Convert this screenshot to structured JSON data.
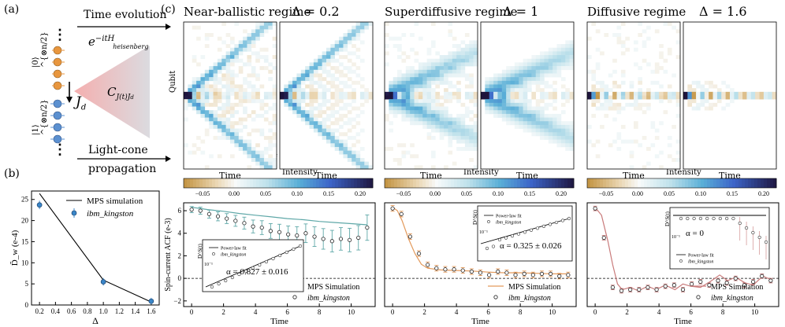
{
  "panel_labels": {
    "a": "(a)",
    "b": "(b)",
    "c": "(c)"
  },
  "schematic": {
    "time_evolution": "Time evolution",
    "operator": "e^{-itH_heisenberg}",
    "operator_main": "e",
    "operator_sup": "−itH",
    "operator_sub": "heisenberg",
    "state_up": "|0⟩^{⊗n/2}",
    "state_down": "|1⟩^{⊗n/2}",
    "correlator": "C",
    "correlator_sub": "J(t)J",
    "correlator_subsub": "d",
    "current": "J",
    "current_sub": "d",
    "light_cone_1": "Light-cone",
    "light_cone_2": "propagation",
    "dots": "⋮"
  },
  "regimes": [
    {
      "name": "Near-ballistic regime",
      "delta": "Δ = 0.2",
      "device": "ibm_kingston",
      "sim": "MPS Simulation",
      "dw_device": "D̃_w = 23.7 ± 0.4e-4",
      "dw_sim": "D̃_w = 26.4e-4"
    },
    {
      "name": "Superdiffusive  regime",
      "delta": "Δ = 1",
      "device": "ibm_kingston",
      "sim": "MPS Simulation",
      "dw_device": "D̃_w = 5.5 ± 0.3e-4",
      "dw_sim": "D̃_w = 5.9e-4"
    },
    {
      "name": "Diffusive regime",
      "delta": "Δ = 1.6",
      "device": "ibm_kingston",
      "sim": "MPS Simulation",
      "dw_device": "D̃_w = 0.9 ± 0.2e-4",
      "dw_sim": "D̃_w = 0.7e-4"
    }
  ],
  "heatmap_axis": {
    "x": "Time",
    "y": "Qubit"
  },
  "colorbar": {
    "label": "Intensity",
    "ticks": [
      "−0.05",
      "0.00",
      "0.05",
      "0.10",
      "0.15",
      "0.20"
    ],
    "range": [
      -0.08,
      0.22
    ]
  },
  "colors": {
    "blue": "#3a86c8",
    "teal": "#5fa8a8",
    "orange": "#e39a5c",
    "pink": "#c97b7b",
    "dark": "#262626"
  },
  "chart_data": [
    {
      "type": "line",
      "panel": "b",
      "xlabel": "Δ",
      "ylabel": "D̃_w (e-4)",
      "xlim": [
        0.1,
        1.7
      ],
      "ylim": [
        0,
        27
      ],
      "xticks": [
        "0.2",
        "0.4",
        "0.6",
        "0.8",
        "1.0",
        "1.2",
        "1.4",
        "1.6"
      ],
      "yticks": [
        "0",
        "5",
        "10",
        "15",
        "20",
        "25"
      ],
      "series": [
        {
          "name": "MPS simulation",
          "x": [
            0.2,
            1.0,
            1.6
          ],
          "y": [
            26.4,
            5.9,
            0.7
          ]
        },
        {
          "name": "ibm_kingston",
          "x": [
            0.2,
            1.0,
            1.6
          ],
          "y": [
            23.7,
            5.5,
            0.9
          ],
          "err": [
            0.4,
            0.3,
            0.2
          ]
        }
      ],
      "legend": [
        "MPS simulation",
        "ibm_kingston"
      ]
    },
    {
      "type": "line",
      "panel": "c-acf",
      "ylabel": "Spin-current ACF (e-3)",
      "xlabel": "Time",
      "xlim": [
        -0.5,
        11.5
      ],
      "ylim": [
        -2.5,
        6.7
      ],
      "xticks": [
        "0",
        "2",
        "4",
        "6",
        "8",
        "10"
      ],
      "yticks": [
        "−2",
        "0",
        "2",
        "4",
        "6"
      ],
      "legend": [
        "MPS Simulation",
        "ibm_kingston"
      ],
      "plots": [
        {
          "sim": [
            [
              0,
              6.3
            ],
            [
              1,
              6.1
            ],
            [
              2,
              5.95
            ],
            [
              3,
              5.75
            ],
            [
              4,
              5.6
            ],
            [
              5,
              5.45
            ],
            [
              6,
              5.3
            ],
            [
              7,
              5.2
            ],
            [
              8,
              5.05
            ],
            [
              9,
              4.95
            ],
            [
              10,
              4.85
            ],
            [
              11,
              4.75
            ]
          ],
          "device": [
            [
              0,
              6.1
            ],
            [
              0.55,
              6.0
            ],
            [
              1.1,
              5.7
            ],
            [
              1.65,
              5.5
            ],
            [
              2.2,
              5.3
            ],
            [
              2.75,
              5.1
            ],
            [
              3.3,
              4.9
            ],
            [
              3.85,
              4.6
            ],
            [
              4.4,
              4.5
            ],
            [
              4.95,
              4.2
            ],
            [
              5.5,
              4.1
            ],
            [
              6.05,
              3.9
            ],
            [
              6.6,
              3.8
            ],
            [
              7.15,
              4.0
            ],
            [
              7.7,
              3.7
            ],
            [
              8.25,
              3.5
            ],
            [
              8.8,
              3.3
            ],
            [
              9.35,
              3.5
            ],
            [
              9.9,
              3.4
            ],
            [
              10.45,
              3.6
            ],
            [
              11,
              4.5
            ]
          ],
          "err": 0.9,
          "inset": {
            "label": "α = 0.827 ± 0.016",
            "ylabel": "D^S(t)",
            "ytick": "10⁻¹",
            "legend": [
              "Power-law fit",
              "ibm_kingston"
            ]
          }
        },
        {
          "sim": [
            [
              0,
              6.3
            ],
            [
              0.3,
              6.0
            ],
            [
              0.6,
              5.1
            ],
            [
              1,
              3.5
            ],
            [
              1.4,
              2.2
            ],
            [
              1.8,
              1.25
            ],
            [
              2.2,
              0.9
            ],
            [
              3,
              0.75
            ],
            [
              4,
              0.7
            ],
            [
              5,
              0.65
            ],
            [
              6,
              0.55
            ],
            [
              7,
              0.5
            ],
            [
              8,
              0.5
            ],
            [
              9,
              0.45
            ],
            [
              10,
              0.4
            ],
            [
              11,
              0.4
            ]
          ],
          "device": [
            [
              0,
              6.2
            ],
            [
              0.55,
              5.7
            ],
            [
              1.1,
              3.7
            ],
            [
              1.65,
              2.2
            ],
            [
              2.2,
              1.2
            ],
            [
              2.75,
              0.9
            ],
            [
              3.3,
              0.8
            ],
            [
              3.85,
              0.8
            ],
            [
              4.4,
              0.7
            ],
            [
              4.95,
              0.6
            ],
            [
              5.5,
              0.5
            ],
            [
              6.05,
              0.3
            ],
            [
              6.6,
              0.6
            ],
            [
              7.15,
              0.5
            ],
            [
              7.7,
              0.3
            ],
            [
              8.25,
              0.4
            ],
            [
              8.8,
              0.3
            ],
            [
              9.35,
              0.4
            ],
            [
              9.9,
              0.4
            ],
            [
              10.45,
              0.2
            ],
            [
              11,
              0.3
            ]
          ],
          "err": 0.25,
          "inset": {
            "label": "α = 0.325 ± 0.026",
            "ylabel": "D^S(t)",
            "ytick": "10⁻¹",
            "legend": [
              "Power-law fit",
              "ibm_kingston"
            ]
          }
        },
        {
          "sim": [
            [
              0,
              6.3
            ],
            [
              0.4,
              5.6
            ],
            [
              0.8,
              3.3
            ],
            [
              1.1,
              1.2
            ],
            [
              1.4,
              -0.5
            ],
            [
              1.7,
              -1.0
            ],
            [
              2.2,
              -0.8
            ],
            [
              2.7,
              -1.1
            ],
            [
              3.3,
              -0.7
            ],
            [
              3.8,
              -1.0
            ],
            [
              4.4,
              -0.6
            ],
            [
              5,
              -1.0
            ],
            [
              5.5,
              -0.5
            ],
            [
              6,
              -0.7
            ],
            [
              6.6,
              -0.8
            ],
            [
              7.2,
              -0.3
            ],
            [
              7.8,
              0.3
            ],
            [
              8.3,
              -0.2
            ],
            [
              8.8,
              0.1
            ],
            [
              9.4,
              -0.4
            ],
            [
              9.9,
              -0.6
            ],
            [
              10.5,
              0.2
            ],
            [
              11,
              -0.1
            ]
          ],
          "device": [
            [
              0,
              6.2
            ],
            [
              0.55,
              3.6
            ],
            [
              1.1,
              -0.8
            ],
            [
              1.65,
              -1.1
            ],
            [
              2.2,
              -1.0
            ],
            [
              2.75,
              -1.0
            ],
            [
              3.3,
              -0.8
            ],
            [
              3.85,
              -1.0
            ],
            [
              4.4,
              -0.7
            ],
            [
              4.95,
              -0.6
            ],
            [
              5.5,
              -1.0
            ],
            [
              6.05,
              -0.5
            ],
            [
              6.6,
              -0.3
            ],
            [
              7.15,
              -0.6
            ],
            [
              7.7,
              -0.2
            ],
            [
              8.25,
              -0.4
            ],
            [
              8.8,
              0.0
            ],
            [
              9.35,
              -0.6
            ],
            [
              9.9,
              -0.3
            ],
            [
              10.45,
              0.2
            ],
            [
              11,
              -0.2
            ]
          ],
          "err": 0.2,
          "inset": {
            "label": "α = 0",
            "ylabel": "D^S(t)",
            "ytick": "10⁻¹",
            "legend": [
              "Power-law fit",
              "ibm_kingston"
            ]
          }
        }
      ]
    }
  ]
}
